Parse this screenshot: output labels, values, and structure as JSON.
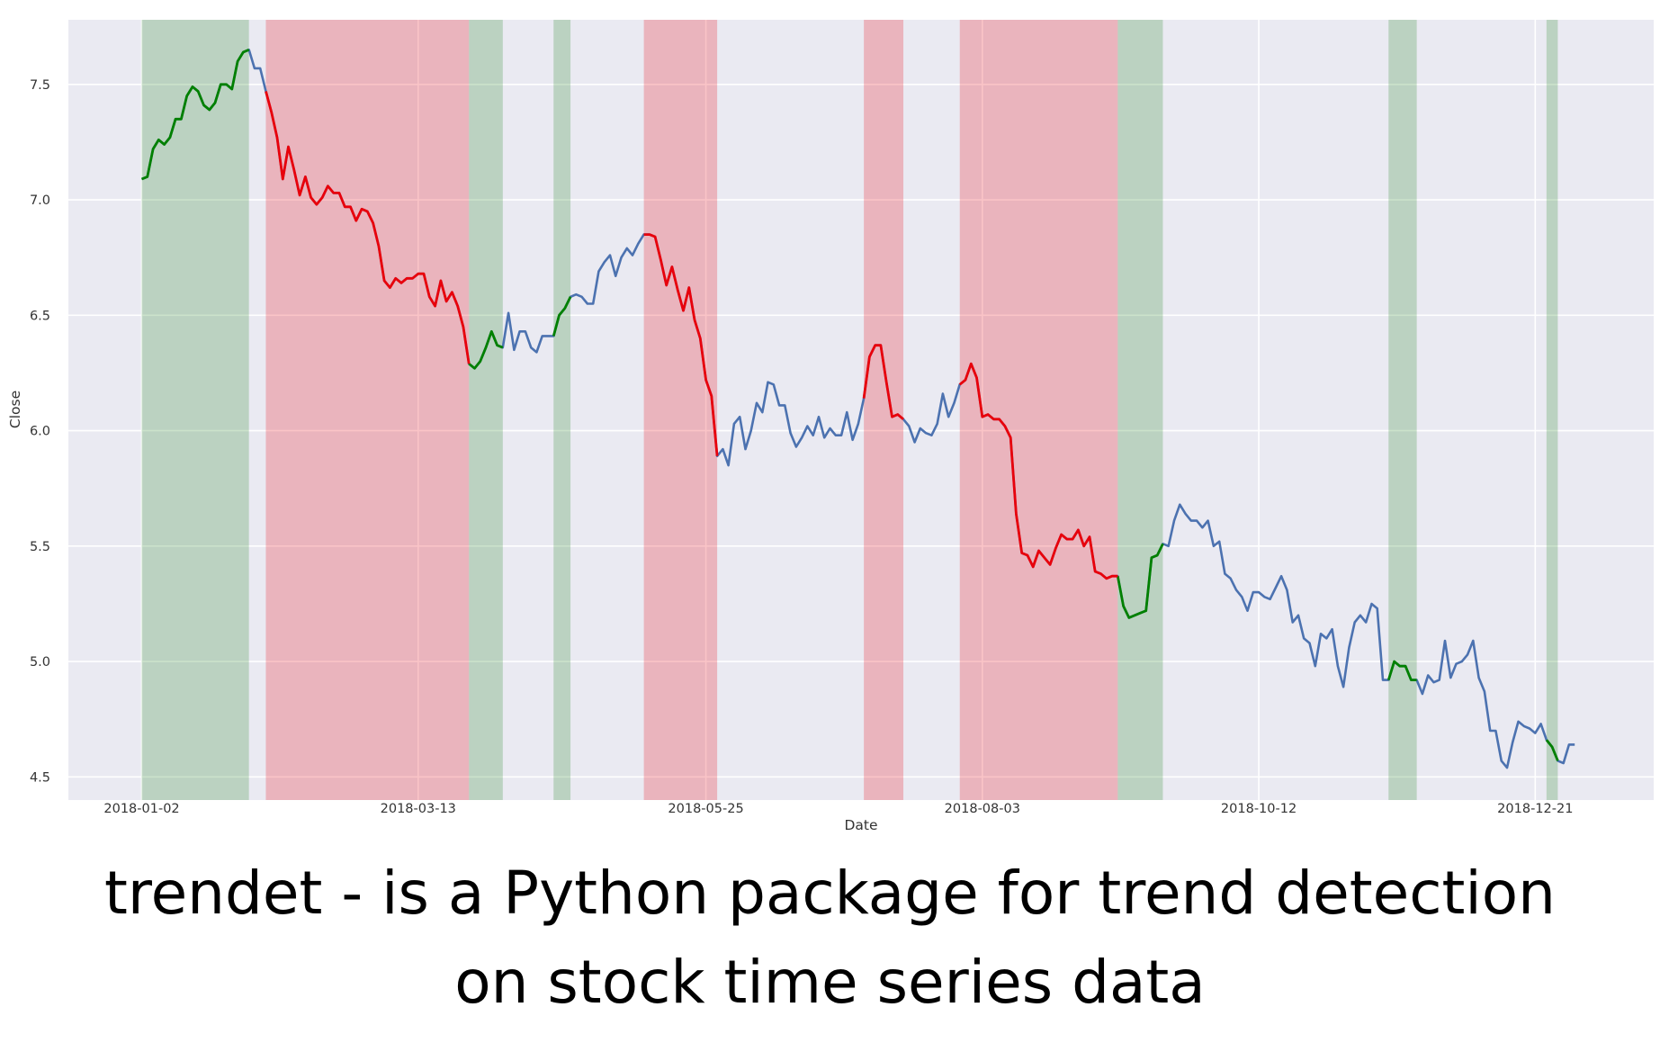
{
  "chart_data": {
    "type": "line",
    "xlabel": "Date",
    "ylabel": "Close",
    "x_tick_labels": [
      "2018-01-02",
      "2018-03-13",
      "2018-05-25",
      "2018-08-03",
      "2018-10-12",
      "2018-12-21"
    ],
    "y_tick_labels": [
      "4.5",
      "5.0",
      "5.5",
      "6.0",
      "6.5",
      "7.0",
      "7.5"
    ],
    "y_ticks": [
      4.5,
      5.0,
      5.5,
      6.0,
      6.5,
      7.0,
      7.5
    ],
    "ylim": [
      4.4,
      7.78
    ],
    "xlim": [
      -13,
      268
    ],
    "x_ticks": [
      0,
      49,
      100,
      149,
      198,
      247
    ],
    "grid": true,
    "style": "seaborn-darkgrid",
    "colors": {
      "background": "#eaeaf2",
      "grid": "#ffffff",
      "base_line": "#4c72b0",
      "up_line": "#008000",
      "down_line": "#e8000b",
      "up_area": "#2e8b2e",
      "down_area": "#e8000b"
    },
    "up_trends": [
      [
        0,
        19
      ],
      [
        58,
        64
      ],
      [
        73,
        76
      ],
      [
        173,
        181
      ],
      [
        221,
        226
      ],
      [
        249,
        251
      ]
    ],
    "down_trends": [
      [
        22,
        58
      ],
      [
        89,
        102
      ],
      [
        128,
        135
      ],
      [
        145,
        173
      ]
    ],
    "series": [
      {
        "values": [
          7.09,
          7.1,
          7.22,
          7.26,
          7.24,
          7.27,
          7.35,
          7.35,
          7.45,
          7.49,
          7.47,
          7.41,
          7.39,
          7.42,
          7.5,
          7.5,
          7.48,
          7.6,
          7.64,
          7.65,
          7.57,
          7.57,
          7.47,
          7.38,
          7.27,
          7.09,
          7.23,
          7.13,
          7.02,
          7.1,
          7.01,
          6.98,
          7.01,
          7.06,
          7.03,
          7.03,
          6.97,
          6.97,
          6.91,
          6.96,
          6.95,
          6.9,
          6.8,
          6.65,
          6.62,
          6.66,
          6.64,
          6.66,
          6.66,
          6.68,
          6.68,
          6.58,
          6.54,
          6.65,
          6.56,
          6.6,
          6.54,
          6.45,
          6.29,
          6.27,
          6.3,
          6.36,
          6.43,
          6.37,
          6.36,
          6.51,
          6.35,
          6.43,
          6.43,
          6.36,
          6.34,
          6.41,
          6.41,
          6.41,
          6.5,
          6.53,
          6.58,
          6.59,
          6.58,
          6.55,
          6.55,
          6.69,
          6.73,
          6.76,
          6.67,
          6.75,
          6.79,
          6.76,
          6.81,
          6.85,
          6.85,
          6.84,
          6.74,
          6.63,
          6.71,
          6.61,
          6.52,
          6.62,
          6.48,
          6.4,
          6.22,
          6.15,
          5.89,
          5.92,
          5.85,
          6.03,
          6.06,
          5.92,
          6.0,
          6.12,
          6.08,
          6.21,
          6.2,
          6.11,
          6.11,
          5.99,
          5.93,
          5.97,
          6.02,
          5.98,
          6.06,
          5.97,
          6.01,
          5.98,
          5.98,
          6.08,
          5.96,
          6.03,
          6.14,
          6.32,
          6.37,
          6.37,
          6.21,
          6.06,
          6.07,
          6.05,
          6.02,
          5.95,
          6.01,
          5.99,
          5.98,
          6.03,
          6.16,
          6.06,
          6.12,
          6.2,
          6.22,
          6.29,
          6.23,
          6.06,
          6.07,
          6.05,
          6.05,
          6.02,
          5.97,
          5.64,
          5.47,
          5.46,
          5.41,
          5.48,
          5.45,
          5.42,
          5.49,
          5.55,
          5.53,
          5.53,
          5.57,
          5.5,
          5.54,
          5.39,
          5.38,
          5.36,
          5.37,
          5.37,
          5.24,
          5.19,
          5.2,
          5.21,
          5.22,
          5.45,
          5.46,
          5.51,
          5.5,
          5.61,
          5.68,
          5.64,
          5.61,
          5.61,
          5.58,
          5.61,
          5.5,
          5.52,
          5.38,
          5.36,
          5.31,
          5.28,
          5.22,
          5.3,
          5.3,
          5.28,
          5.27,
          5.32,
          5.37,
          5.31,
          5.17,
          5.2,
          5.1,
          5.08,
          4.98,
          5.12,
          5.1,
          5.14,
          4.98,
          4.89,
          5.06,
          5.17,
          5.2,
          5.17,
          5.25,
          5.23,
          4.92,
          4.92,
          5.0,
          4.98,
          4.98,
          4.92,
          4.92,
          4.86,
          4.94,
          4.91,
          4.92,
          5.09,
          4.93,
          4.99,
          5.0,
          5.03,
          5.09,
          4.93,
          4.87,
          4.7,
          4.7,
          4.57,
          4.54,
          4.65,
          4.74,
          4.72,
          4.71,
          4.69,
          4.73,
          4.66,
          4.63,
          4.57,
          4.56,
          4.64,
          4.64
        ]
      }
    ]
  },
  "caption": {
    "line1": "trendet - is a Python package for trend detection",
    "line2": "on stock time series data"
  }
}
